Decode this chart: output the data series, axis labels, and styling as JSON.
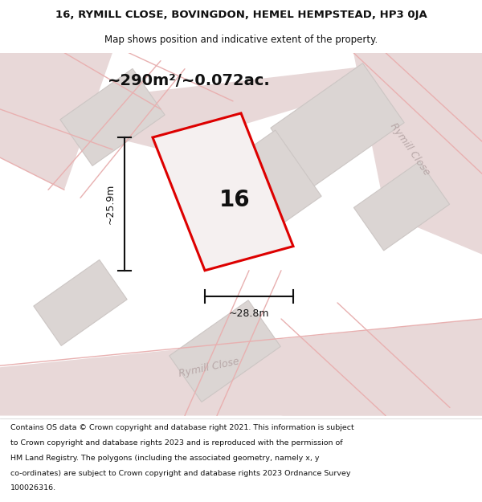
{
  "title_line1": "16, RYMILL CLOSE, BOVINGDON, HEMEL HEMPSTEAD, HP3 0JA",
  "title_line2": "Map shows position and indicative extent of the property.",
  "area_text": "~290m²/~0.072ac.",
  "dim_width": "~28.8m",
  "dim_height": "~25.9m",
  "house_number": "16",
  "street_label_bottom": "Rymill Close",
  "street_label_right": "Rymill Close",
  "footer_lines": [
    "Contains OS data © Crown copyright and database right 2021. This information is subject",
    "to Crown copyright and database rights 2023 and is reproduced with the permission of",
    "HM Land Registry. The polygons (including the associated geometry, namely x, y",
    "co-ordinates) are subject to Crown copyright and database rights 2023 Ordnance Survey",
    "100026316."
  ],
  "map_bg": "#f0eded",
  "plot_edge_color": "#dd0000",
  "plot_fill_color": "#f5f0f0",
  "road_fill_color": "#e8d8d8",
  "road_line_color": "#e8b0b0",
  "building_color": "#dbd5d3",
  "building_edge_color": "#ccc6c4",
  "street_label_color": "#b8a8a8",
  "header_fontsize": 9.5,
  "subtitle_fontsize": 8.5,
  "area_fontsize": 14,
  "dim_fontsize": 9,
  "number_fontsize": 20,
  "street_fontsize": 9,
  "footer_fontsize": 6.8
}
